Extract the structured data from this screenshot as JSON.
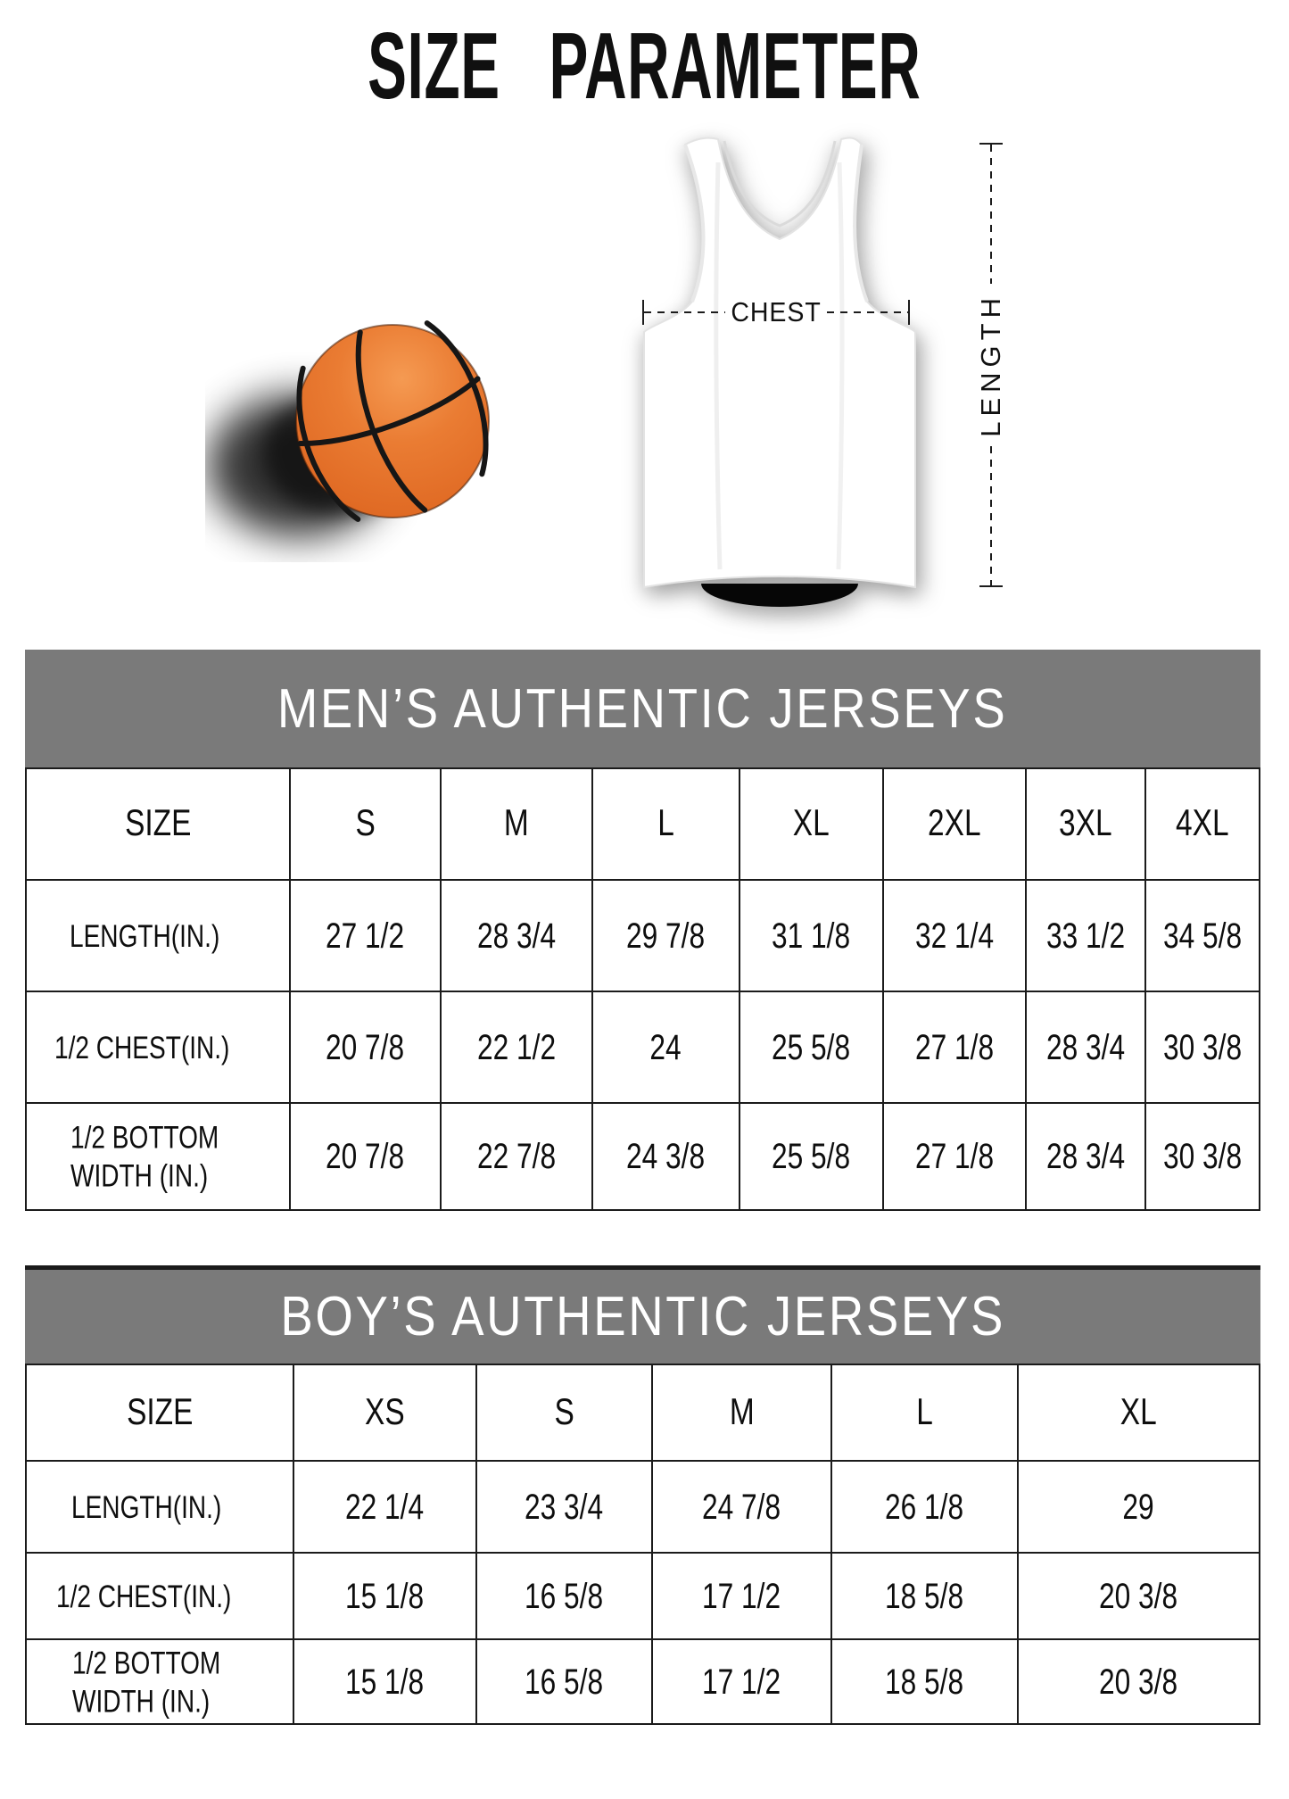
{
  "page_title": "SIZE PARAMETER",
  "hero": {
    "chest_label": "CHEST",
    "length_label": "LENGTH",
    "basketball_icon": "basketball",
    "jersey_icon": "white-sleeveless-basketball-jersey"
  },
  "colors": {
    "table_header_gray": "#7a7a7a",
    "basketball_orange": "#e8762c",
    "table_border_black": "#1b1b1b"
  },
  "chart_data": [
    {
      "type": "table",
      "title": "MEN’S AUTHENTIC JERSEYS",
      "columns": [
        "SIZE",
        "S",
        "M",
        "L",
        "XL",
        "2XL",
        "3XL",
        "4XL"
      ],
      "rows": [
        {
          "label": "LENGTH(IN.)",
          "values": [
            "27 1/2",
            "28 3/4",
            "29 7/8",
            "31 1/8",
            "32 1/4",
            "33 1/2",
            "34 5/8"
          ]
        },
        {
          "label": "1/2 CHEST(IN.)",
          "values": [
            "20 7/8",
            "22 1/2",
            "24",
            "25 5/8",
            "27 1/8",
            "28 3/4",
            "30 3/8"
          ]
        },
        {
          "label": "1/2 BOTTOM\nWIDTH  (IN.)",
          "values": [
            "20 7/8",
            "22 7/8",
            "24 3/8",
            "25 5/8",
            "27 1/8",
            "28 3/4",
            "30 3/8"
          ]
        }
      ]
    },
    {
      "type": "table",
      "title": "BOY’S AUTHENTIC JERSEYS",
      "columns": [
        "SIZE",
        "XS",
        "S",
        "M",
        "L",
        "XL"
      ],
      "rows": [
        {
          "label": "LENGTH(IN.)",
          "values": [
            "22 1/4",
            "23 3/4",
            "24 7/8",
            "26 1/8",
            "29"
          ]
        },
        {
          "label": "1/2 CHEST(IN.)",
          "values": [
            "15 1/8",
            "16 5/8",
            "17 1/2",
            "18 5/8",
            "20 3/8"
          ]
        },
        {
          "label": "1/2 BOTTOM\nWIDTH  (IN.)",
          "values": [
            "15 1/8",
            "16 5/8",
            "17 1/2",
            "18 5/8",
            "20 3/8"
          ]
        }
      ]
    }
  ]
}
